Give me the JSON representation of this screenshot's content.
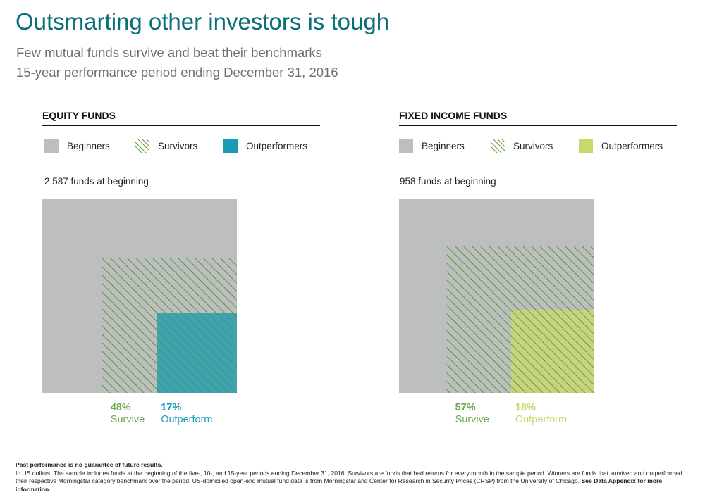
{
  "title": "Outsmarting other investors is tough",
  "subtitle_1": "Few mutual funds survive and beat their benchmarks",
  "subtitle_2": "15-year performance period ending December 31, 2016",
  "colors": {
    "title": "#0b6f7a",
    "beginners": "#bdbebf",
    "survivors_hatch": "#5a9a3c",
    "survive_text": "#6aa84f",
    "equity_outperformers": "#1a9bb5",
    "fixed_outperformers": "#c9d86a"
  },
  "legend": {
    "beginners": "Beginners",
    "survivors": "Survivors",
    "outperformers": "Outperformers"
  },
  "chart_data": [
    {
      "type": "nested-square",
      "title": "EQUITY FUNDS",
      "funds_label": "2,587 funds at beginning",
      "beginning_funds": 2587,
      "survive_pct": 48,
      "outperform_pct": 17,
      "survive_value": "48%",
      "survive_label": "Survive",
      "outperform_value": "17%",
      "outperform_label": "Outperform",
      "outperform_color": "#1a9bb5"
    },
    {
      "type": "nested-square",
      "title": "FIXED INCOME FUNDS",
      "funds_label": "958 funds at beginning",
      "beginning_funds": 958,
      "survive_pct": 57,
      "outperform_pct": 18,
      "survive_value": "57%",
      "survive_label": "Survive",
      "outperform_value": "18%",
      "outperform_label": "Outperform",
      "outperform_color": "#c9d86a"
    }
  ],
  "footer": {
    "line1": "Past performance is no guarantee of future results.",
    "body": "In US dollars. The sample includes funds at the beginning of the five-, 10-, and 15-year periods ending December 31, 2016. Survivors are funds that had returns for every month in the sample period. Winners are funds that survived and outperformed their respective Morningstar category benchmark over the period. US-domiciled open-end mutual fund data is from Morningstar and Center for Research in Security Prices (CRSP) from the University of Chicago.",
    "body_bold": "See Data Appendix for more information."
  }
}
